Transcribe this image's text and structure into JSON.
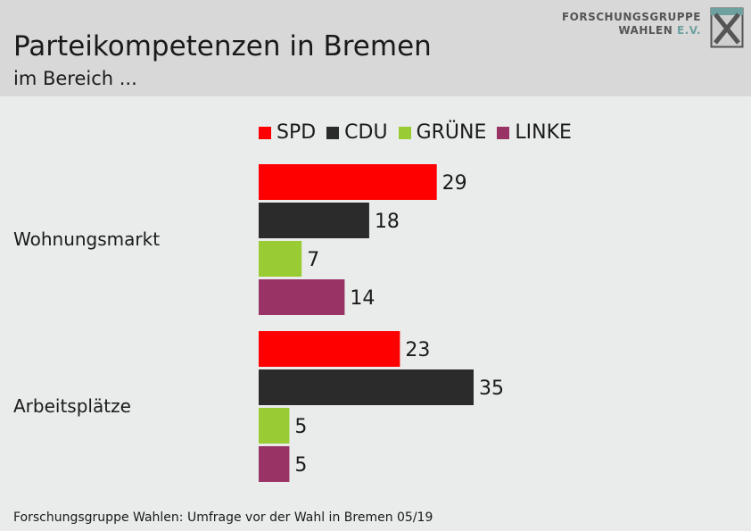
{
  "header": {
    "title": "Parteikompetenzen in Bremen",
    "subtitle": "im Bereich ...",
    "logo_line1": "FORSCHUNGSGRUPPE",
    "logo_line2_a": "WAHLEN ",
    "logo_line2_b": "E.V."
  },
  "footer": {
    "source": "Forschungsgruppe Wahlen: Umfrage vor der Wahl in Bremen 05/19"
  },
  "chart_data": {
    "type": "bar",
    "orientation": "horizontal",
    "categories": [
      "Wohnungsmarkt",
      "Arbeitsplätze"
    ],
    "series": [
      {
        "name": "SPD",
        "color": "#ff0000",
        "values": [
          29,
          23
        ]
      },
      {
        "name": "CDU",
        "color": "#2b2b2b",
        "values": [
          18,
          35
        ]
      },
      {
        "name": "GRÜNE",
        "color": "#99cc33",
        "values": [
          7,
          5
        ]
      },
      {
        "name": "LINKE",
        "color": "#993366",
        "values": [
          14,
          5
        ]
      }
    ],
    "legend_position": "top",
    "grid": false,
    "xlim": [
      0,
      35
    ]
  }
}
